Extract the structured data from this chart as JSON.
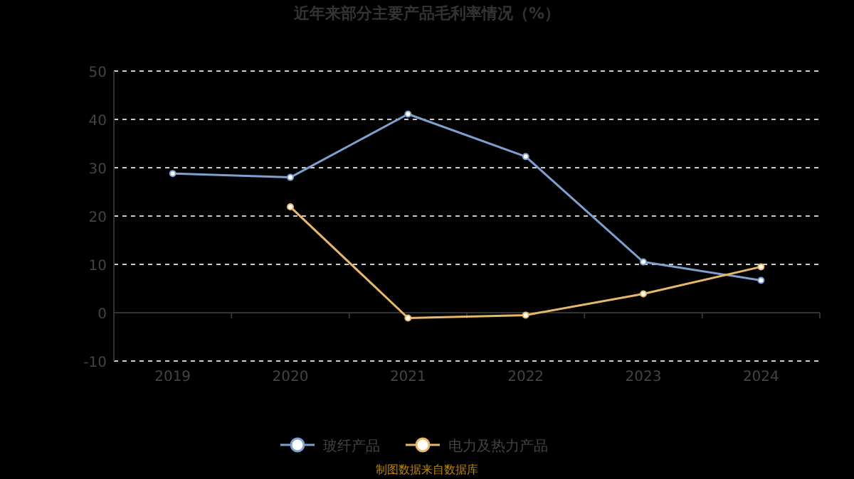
{
  "chart_data": {
    "type": "line",
    "title": "近年来部分主要产品毛利率情况（%）",
    "categories": [
      "2019",
      "2020",
      "2021",
      "2022",
      "2023",
      "2024"
    ],
    "series": [
      {
        "name": "玻纤产品",
        "color": "#7ea0cf",
        "values": [
          28.8,
          28.0,
          41.1,
          32.3,
          10.5,
          6.7
        ]
      },
      {
        "name": "电力及热力产品",
        "color": "#e8b86a",
        "values": [
          null,
          21.9,
          -1.1,
          -0.5,
          3.9,
          9.5
        ]
      }
    ],
    "ylim": [
      -10,
      50
    ],
    "yticks": [
      -10,
      0,
      10,
      20,
      30,
      40,
      50
    ],
    "grid": "y",
    "legend": "bottom",
    "marker": "circle",
    "line_style": "solid",
    "annotations": [
      "制图数据来自数据库"
    ]
  }
}
